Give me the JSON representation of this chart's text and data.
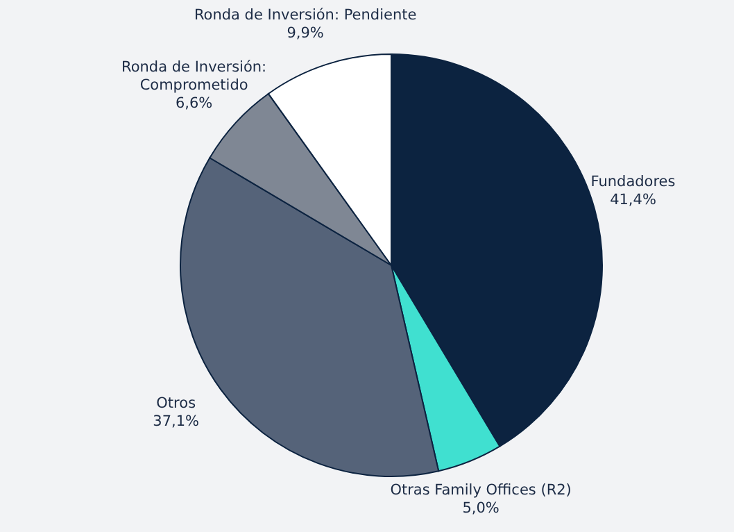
{
  "chart_data": {
    "type": "pie",
    "categories": [
      "Fundadores",
      "Otras Family Offices (R2)",
      "Otros",
      "Ronda de Inversión: Comprometido",
      "Ronda de Inversión: Pendiente"
    ],
    "values": [
      41.4,
      5.0,
      37.1,
      6.6,
      9.9
    ],
    "colors": [
      "#0c2340",
      "#40e0d0",
      "#556379",
      "#7f8794",
      "#ffffff"
    ],
    "value_labels": [
      "41,4%",
      "5,0%",
      "37,1%",
      "6,6%",
      "9,9%"
    ],
    "legend": false
  }
}
